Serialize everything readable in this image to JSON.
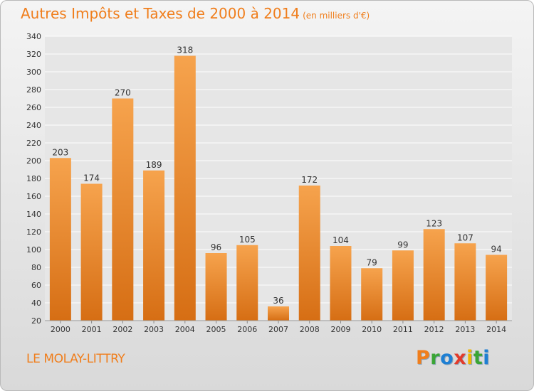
{
  "header": {
    "title": "Autres Impôts et Taxes de 2000 à 2014",
    "unit": "(en milliers d'€)"
  },
  "footer": {
    "location": "LE MOLAY-LITTRY",
    "brand": "Proxiti",
    "brand_colors": [
      "#f07e1c",
      "#3aa535",
      "#1e7fd3",
      "#e23b2b",
      "#f0b400",
      "#3aa535",
      "#1e7fd3"
    ]
  },
  "colors": {
    "accent": "#f07e1c",
    "bar_top": "#f6a34d",
    "bar_bottom": "#d66e14",
    "plot_bg": "#e6e6e6",
    "grid": "#ffffff"
  },
  "chart_data": {
    "type": "bar",
    "categories": [
      "2000",
      "2001",
      "2002",
      "2003",
      "2004",
      "2005",
      "2006",
      "2007",
      "2008",
      "2009",
      "2010",
      "2011",
      "2012",
      "2013",
      "2014"
    ],
    "values": [
      203,
      174,
      270,
      189,
      318,
      96,
      105,
      36,
      172,
      104,
      79,
      99,
      123,
      107,
      94
    ],
    "ylim": [
      20,
      340
    ],
    "yticks": [
      20,
      40,
      60,
      80,
      100,
      120,
      140,
      160,
      180,
      200,
      220,
      240,
      260,
      280,
      300,
      320,
      340
    ],
    "grid": true,
    "data_labels": true
  }
}
